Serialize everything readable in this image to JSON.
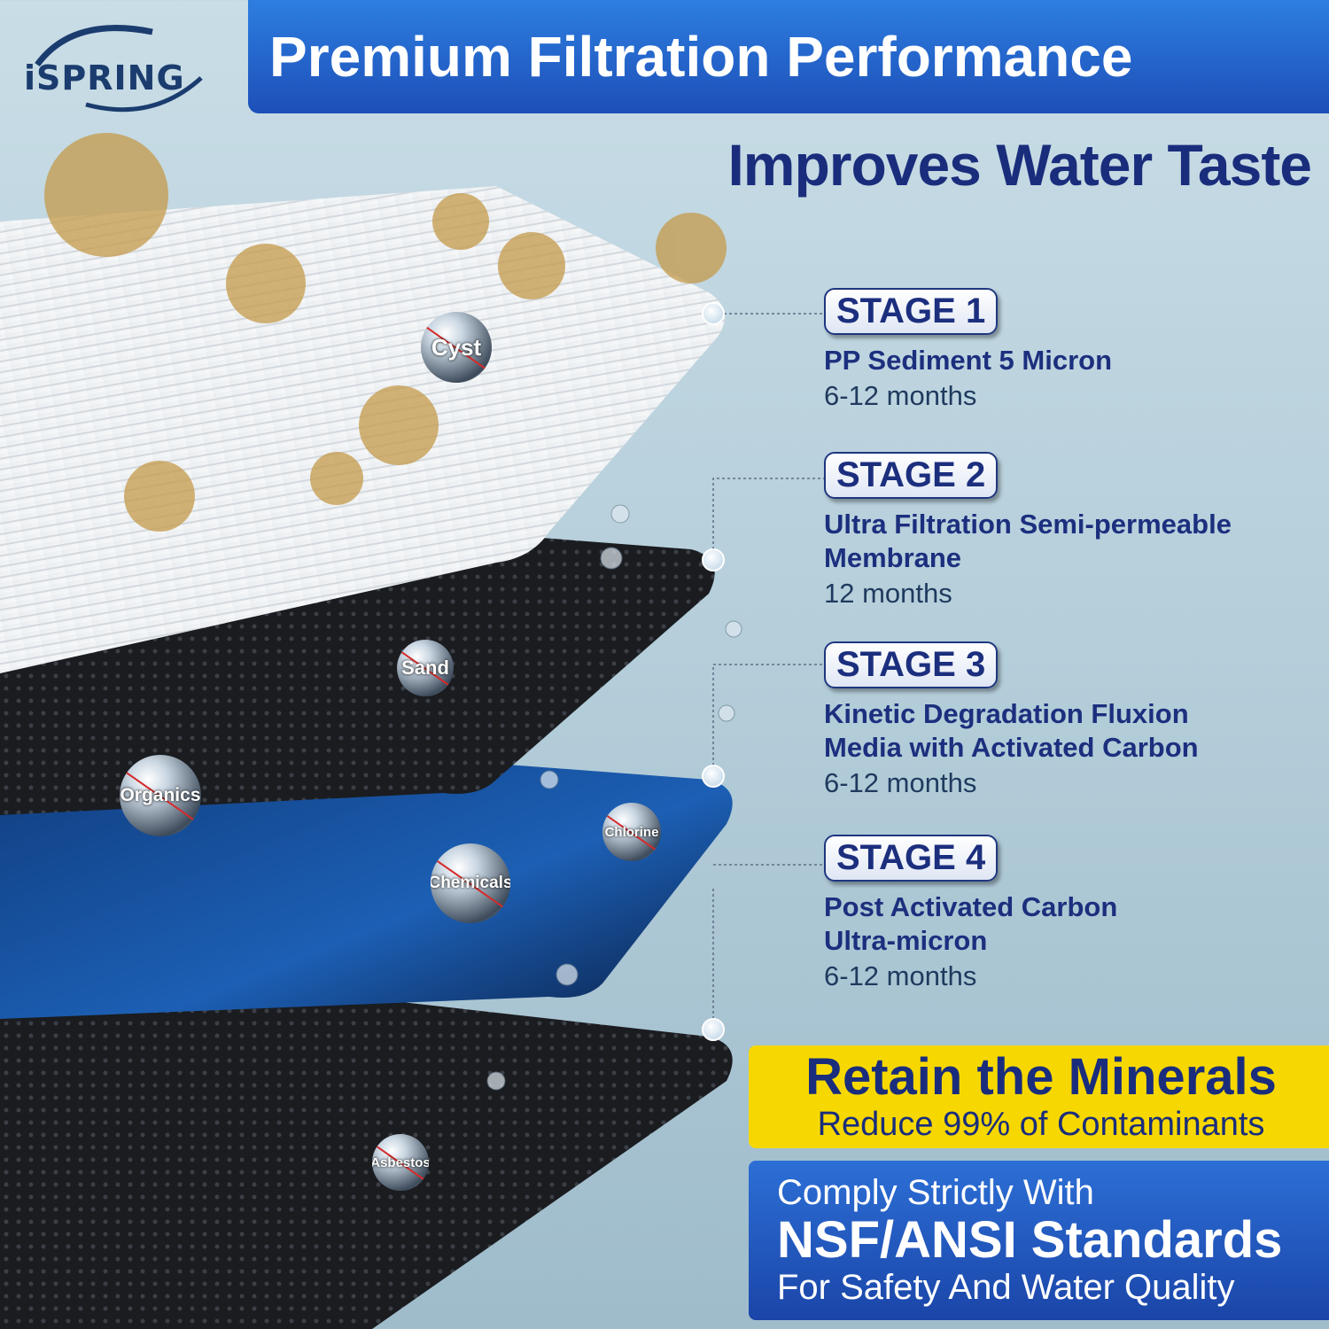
{
  "brand": {
    "logo_text": "iSPRING"
  },
  "header": {
    "title": "Premium Filtration Performance",
    "subtitle": "Improves Water Taste"
  },
  "stages": [
    {
      "label": "STAGE 1",
      "description": [
        "PP Sediment 5 Micron"
      ],
      "lifespan": "6-12 months"
    },
    {
      "label": "STAGE 2",
      "description": [
        "Ultra Filtration Semi-permeable",
        "Membrane"
      ],
      "lifespan": "12 months"
    },
    {
      "label": "STAGE 3",
      "description": [
        "Kinetic Degradation Fluxion",
        "Media with Activated Carbon"
      ],
      "lifespan": "6-12 months"
    },
    {
      "label": "STAGE 4",
      "description": [
        "Post Activated Carbon",
        "Ultra-micron"
      ],
      "lifespan": "6-12 months"
    }
  ],
  "contaminants": [
    "Cyst",
    "Sand",
    "Organics",
    "Chlorine",
    "Chemicals",
    "Asbestos"
  ],
  "minerals": {
    "headline": "Retain the Minerals",
    "subline": "Reduce 99% of Contaminants"
  },
  "compliance": {
    "line1": "Comply Strictly With",
    "line2": "NSF/ANSI Standards",
    "line3": "For Safety And Water Quality"
  },
  "colors": {
    "banner_blue": "#2d7ee0",
    "navy": "#1a2d7c",
    "yellow": "#f6d800"
  }
}
